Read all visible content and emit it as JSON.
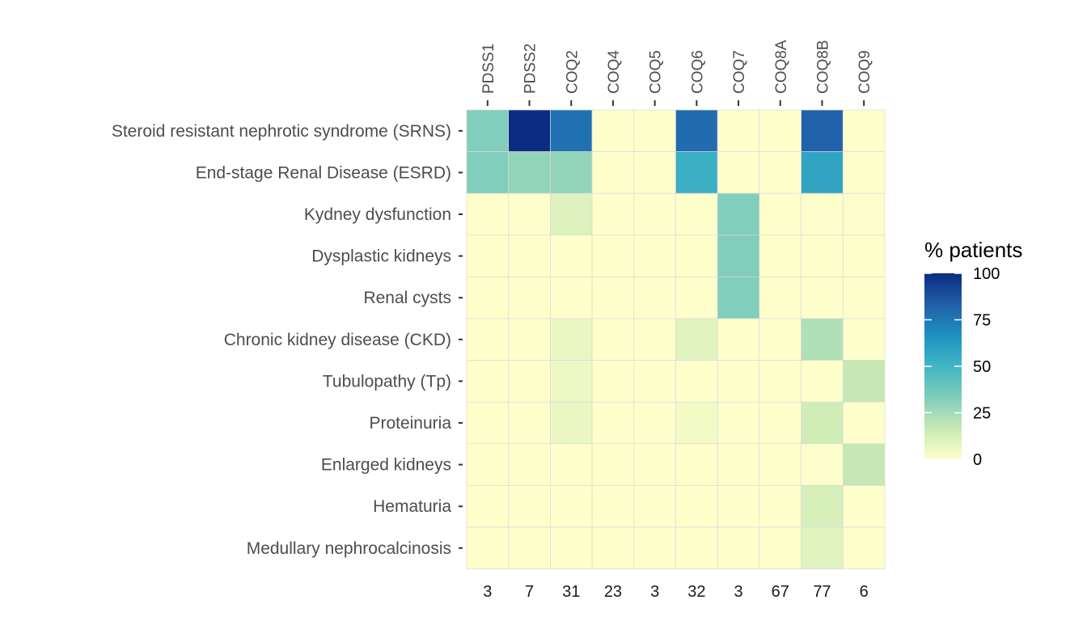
{
  "chart_data": {
    "type": "heatmap",
    "columns": [
      "PDSS1",
      "PDSS2",
      "COQ2",
      "COQ4",
      "COQ5",
      "COQ6",
      "COQ7",
      "COQ8A",
      "COQ8B",
      "COQ9"
    ],
    "column_counts": [
      "3",
      "7",
      "31",
      "23",
      "3",
      "32",
      "3",
      "67",
      "77",
      "6"
    ],
    "rows": [
      "Steroid resistant nephrotic syndrome (SRNS)",
      "End-stage Renal Disease (ESRD)",
      "Kydney dysfunction",
      "Dysplastic kidneys",
      "Renal cysts",
      "Chronic kidney disease (CKD)",
      "Tubulopathy (Tp)",
      "Proteinuria",
      "Enlarged kidneys",
      "Hematuria",
      "Medullary nephrocalcinosis"
    ],
    "values": [
      [
        33,
        100,
        77,
        0,
        0,
        79,
        0,
        0,
        82,
        0
      ],
      [
        33,
        29,
        29,
        0,
        0,
        53,
        0,
        0,
        58,
        0
      ],
      [
        0,
        0,
        10,
        0,
        0,
        0,
        33,
        0,
        1,
        1
      ],
      [
        0,
        0,
        0,
        0,
        0,
        0,
        33,
        0,
        0,
        0
      ],
      [
        0,
        0,
        0,
        0,
        0,
        0,
        33,
        0,
        0,
        0
      ],
      [
        0,
        0,
        6,
        0,
        0,
        9,
        0,
        0,
        22,
        0
      ],
      [
        0,
        0,
        5,
        0,
        0,
        0,
        0,
        0,
        0,
        17
      ],
      [
        0,
        0,
        6,
        0,
        0,
        4,
        0,
        0,
        14,
        0
      ],
      [
        0,
        0,
        0,
        0,
        0,
        0,
        0,
        0,
        1,
        17
      ],
      [
        0,
        0,
        0,
        0,
        0,
        0,
        0,
        0,
        12,
        0
      ],
      [
        0,
        0,
        0,
        0,
        0,
        0,
        0,
        0,
        9,
        0
      ]
    ],
    "legend": {
      "title": "% patients",
      "ticks": [
        100,
        75,
        50,
        25,
        0
      ],
      "range": [
        0,
        100
      ],
      "position": "right"
    },
    "colorscale": [
      "#ffffcc",
      "#c7e9b4",
      "#7fcdbb",
      "#41b6c4",
      "#1d91c0",
      "#225ea8",
      "#0c2c84"
    ],
    "grid": true
  }
}
